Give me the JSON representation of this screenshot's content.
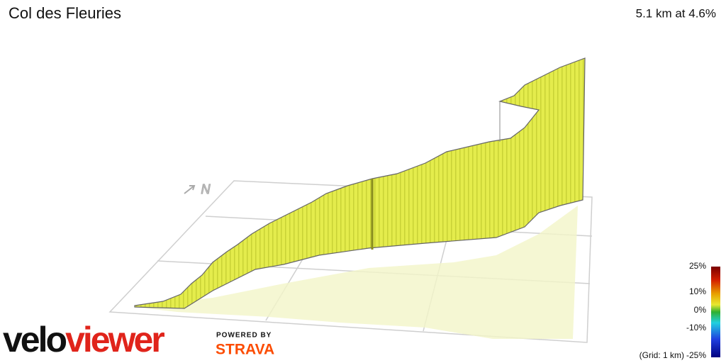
{
  "header": {
    "title": "Col des Fleuries",
    "summary": "5.1 km at 4.6%"
  },
  "gradient_scale": {
    "labels": [
      "25%",
      "10%",
      "0%",
      "-10%",
      "-25%"
    ],
    "grid_note": "(Grid: 1 km)"
  },
  "compass": "N",
  "branding": {
    "logo_part1": "velo",
    "logo_part2": "viewer",
    "powered_by": "POWERED BY",
    "partner": "STRAVA"
  }
}
